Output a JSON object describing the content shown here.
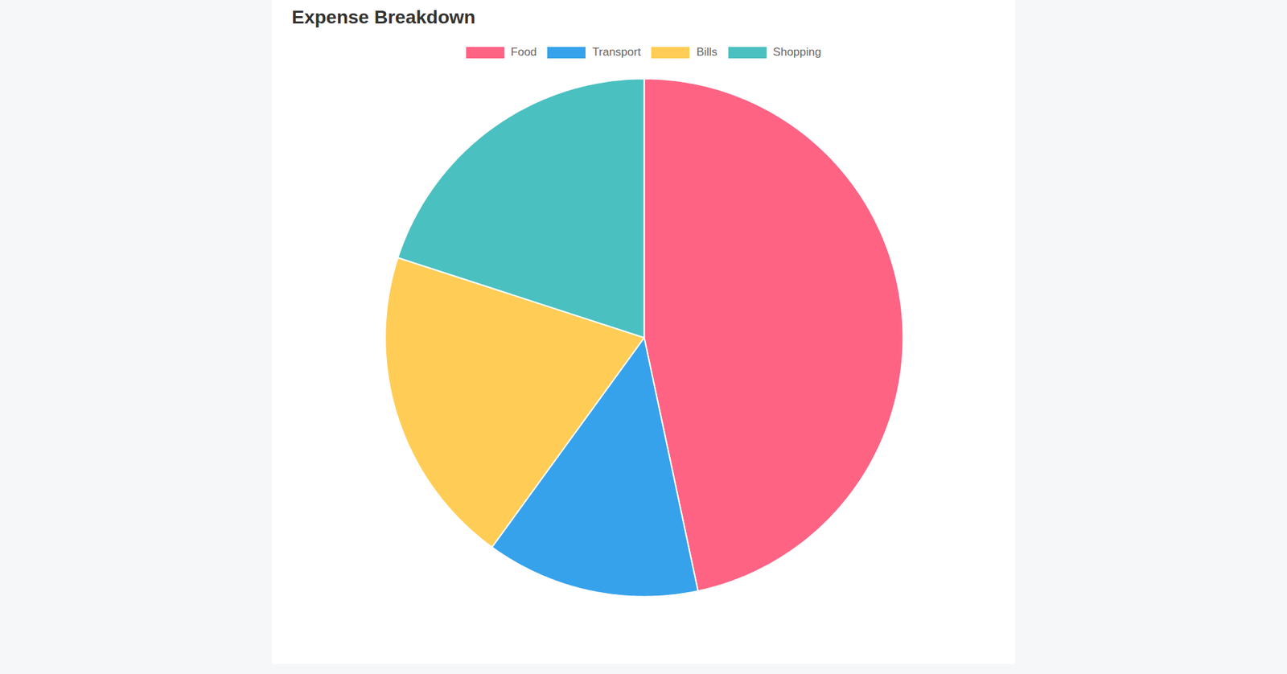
{
  "chart_data": {
    "type": "pie",
    "title": "Expense Breakdown",
    "categories": [
      "Food",
      "Transport",
      "Bills",
      "Shopping"
    ],
    "values": [
      350,
      100,
      150,
      150
    ],
    "colors": [
      "#ff6384",
      "#36a2eb",
      "#ffcd56",
      "#4bc0c0"
    ],
    "legend": "top"
  }
}
